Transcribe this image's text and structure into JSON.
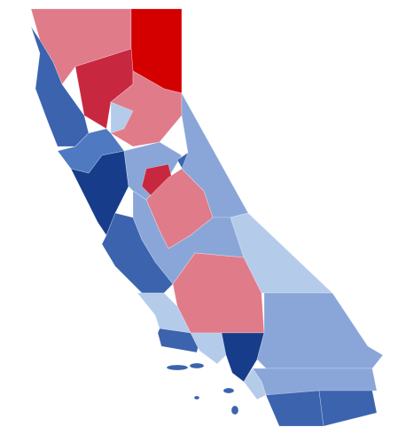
{
  "palette": [
    "#d40000",
    "#c8283f",
    "#e07b8a",
    "#b4cbea",
    "#8aa6d8",
    "#4f79c0",
    "#3b63ae",
    "#173c8a"
  ]
}
